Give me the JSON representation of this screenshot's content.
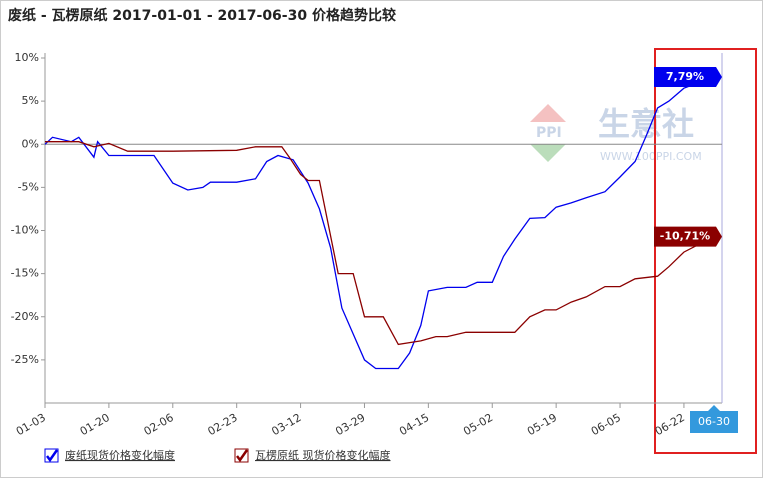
{
  "chart_data": {
    "type": "line",
    "title": "废纸 - 瓦楞原纸 2017-01-01 - 2017-06-30 价格趋势比较",
    "watermark": [
      "生意社",
      "WWW.100PPI.COM",
      "PPI"
    ],
    "ylim": [
      -30,
      10
    ],
    "yticks": [
      {
        "value": 10,
        "label": "10%"
      },
      {
        "value": 5,
        "label": "5%"
      },
      {
        "value": 0,
        "label": "0%"
      },
      {
        "value": -5,
        "label": "-5%"
      },
      {
        "value": -10,
        "label": "-10%"
      },
      {
        "value": -15,
        "label": "-15%"
      },
      {
        "value": -20,
        "label": "-20%"
      },
      {
        "value": -25,
        "label": "-25%"
      }
    ],
    "xticks": [
      "01-03",
      "01-20",
      "02-06",
      "02-23",
      "03-12",
      "03-29",
      "04-15",
      "05-02",
      "05-19",
      "06-05",
      "06-22"
    ],
    "series": [
      {
        "name": "废纸现货价格变化幅度",
        "color": "#0000ee",
        "x": [
          "01-03",
          "01-05",
          "01-10",
          "01-12",
          "01-16",
          "01-17",
          "01-20",
          "02-01",
          "02-06",
          "02-10",
          "02-14",
          "02-16",
          "02-23",
          "02-28",
          "03-03",
          "03-06",
          "03-10",
          "03-14",
          "03-17",
          "03-20",
          "03-23",
          "03-26",
          "03-29",
          "04-01",
          "04-07",
          "04-10",
          "04-13",
          "04-15",
          "04-20",
          "04-25",
          "04-28",
          "05-02",
          "05-05",
          "05-08",
          "05-12",
          "05-16",
          "05-19",
          "05-23",
          "05-27",
          "06-01",
          "06-05",
          "06-09",
          "06-12",
          "06-15",
          "06-18",
          "06-22",
          "06-30"
        ],
        "values": [
          0,
          0.8,
          0.3,
          0.8,
          -1.5,
          0.3,
          -1.3,
          -1.3,
          -4.5,
          -5.3,
          -5.0,
          -4.4,
          -4.4,
          -4.0,
          -2.0,
          -1.3,
          -1.8,
          -4.5,
          -7.5,
          -12,
          -19,
          -22,
          -25,
          -26,
          -26,
          -24.2,
          -21,
          -17,
          -16.6,
          -16.6,
          -16,
          -16,
          -13,
          -11,
          -8.6,
          -8.5,
          -7.3,
          -6.8,
          -6.2,
          -5.5,
          -3.8,
          -2,
          1,
          4.2,
          5,
          6.5,
          7.79
        ],
        "value_labels": [
          null,
          null,
          null,
          null,
          null,
          null,
          null,
          null,
          null,
          null,
          null,
          null,
          null,
          null,
          null,
          null,
          null,
          null,
          null,
          null,
          null,
          null,
          null,
          null,
          null,
          null,
          null,
          null,
          null,
          null,
          null,
          null,
          null,
          null,
          null,
          null,
          null,
          null,
          null,
          null,
          null,
          null,
          null,
          null,
          null,
          null,
          "7,79%"
        ]
      },
      {
        "name": "瓦楞原纸 现货价格变化幅度",
        "color": "#8b0000",
        "x": [
          "01-03",
          "01-10",
          "01-12",
          "01-16",
          "01-20",
          "01-25",
          "02-06",
          "02-23",
          "02-28",
          "03-07",
          "03-09",
          "03-12",
          "03-14",
          "03-17",
          "03-22",
          "03-26",
          "03-29",
          "04-03",
          "04-07",
          "04-13",
          "04-17",
          "04-20",
          "04-25",
          "05-08",
          "05-12",
          "05-16",
          "05-19",
          "05-23",
          "05-27",
          "06-01",
          "06-05",
          "06-09",
          "06-15",
          "06-18",
          "06-22",
          "06-30"
        ],
        "values": [
          0.3,
          0.3,
          0.3,
          -0.3,
          0.1,
          -0.8,
          -0.8,
          -0.7,
          -0.3,
          -0.3,
          -1.5,
          -3.5,
          -4.2,
          -4.2,
          -15,
          -15,
          -20,
          -20,
          -23.2,
          -22.8,
          -22.3,
          -22.3,
          -21.8,
          -21.8,
          -20,
          -19.2,
          -19.2,
          -18.3,
          -17.7,
          -16.5,
          -16.5,
          -15.6,
          -15.3,
          -14.2,
          -12.5,
          -10.71
        ],
        "value_labels": [
          null,
          null,
          null,
          null,
          null,
          null,
          null,
          null,
          null,
          null,
          null,
          null,
          null,
          null,
          null,
          null,
          null,
          null,
          null,
          null,
          null,
          null,
          null,
          null,
          null,
          null,
          null,
          null,
          null,
          null,
          null,
          null,
          null,
          null,
          null,
          "-10,71%"
        ]
      }
    ]
  }
}
